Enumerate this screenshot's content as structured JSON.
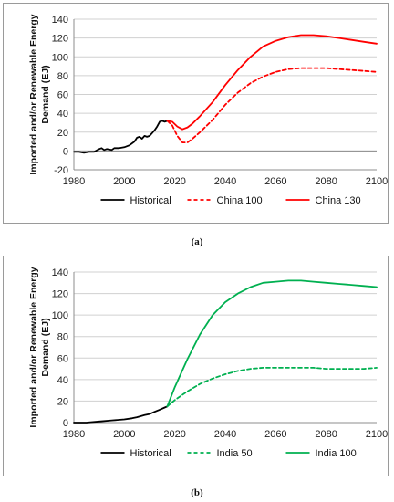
{
  "chart_data": [
    {
      "type": "line",
      "panel": "a",
      "ylabel": "Imported and/or Renewable Energy Demand (EJ)",
      "xlabel": "",
      "xlim": [
        1980,
        2100
      ],
      "ylim": [
        -20,
        140
      ],
      "xticks": [
        1980,
        2000,
        2020,
        2040,
        2060,
        2080,
        2100
      ],
      "yticks": [
        -20,
        0,
        20,
        40,
        60,
        80,
        100,
        120,
        140
      ],
      "grid": "horizontal",
      "legend": "bottom",
      "series": [
        {
          "name": "Historical",
          "color": "#000000",
          "dash": "solid",
          "x": [
            1980,
            1982,
            1984,
            1986,
            1988,
            1990,
            1991,
            1992,
            1993,
            1995,
            1996,
            1998,
            2000,
            2002,
            2004,
            2005,
            2006,
            2007,
            2008,
            2009,
            2010,
            2011,
            2012,
            2013,
            2014,
            2015,
            2016,
            2017
          ],
          "y": [
            -1,
            -1,
            -2,
            -1,
            -1,
            2,
            3,
            1,
            2,
            1,
            3,
            3,
            4,
            6,
            10,
            14,
            15,
            13,
            16,
            15,
            16,
            19,
            22,
            26,
            31,
            32,
            31,
            32
          ]
        },
        {
          "name": "China 100",
          "color": "#ff0000",
          "dash": "dashed",
          "x": [
            2017,
            2019,
            2021,
            2023,
            2025,
            2027,
            2030,
            2035,
            2040,
            2045,
            2050,
            2055,
            2060,
            2065,
            2070,
            2075,
            2080,
            2085,
            2090,
            2095,
            2100
          ],
          "y": [
            32,
            27,
            16,
            9,
            9,
            13,
            20,
            33,
            49,
            62,
            72,
            79,
            84,
            87,
            88,
            88,
            88,
            87,
            86,
            85,
            84
          ]
        },
        {
          "name": "China 130",
          "color": "#ff0000",
          "dash": "solid",
          "x": [
            2017,
            2019,
            2021,
            2023,
            2025,
            2027,
            2030,
            2035,
            2040,
            2045,
            2050,
            2055,
            2060,
            2065,
            2070,
            2075,
            2080,
            2085,
            2090,
            2095,
            2100
          ],
          "y": [
            32,
            31,
            26,
            23,
            25,
            29,
            37,
            52,
            70,
            86,
            100,
            111,
            117,
            121,
            123,
            123,
            122,
            120,
            118,
            116,
            114
          ]
        }
      ]
    },
    {
      "type": "line",
      "panel": "b",
      "ylabel": "Imported and/or Renewable Energy Demand (EJ)",
      "xlabel": "",
      "xlim": [
        1980,
        2100
      ],
      "ylim": [
        0,
        140
      ],
      "xticks": [
        1980,
        2000,
        2020,
        2040,
        2060,
        2080,
        2100
      ],
      "yticks": [
        0,
        20,
        40,
        60,
        80,
        100,
        120,
        140
      ],
      "grid": "horizontal",
      "legend": "bottom",
      "series": [
        {
          "name": "Historical",
          "color": "#000000",
          "dash": "solid",
          "x": [
            1980,
            1985,
            1990,
            1995,
            2000,
            2003,
            2005,
            2008,
            2010,
            2012,
            2014,
            2016,
            2017
          ],
          "y": [
            0,
            0,
            1,
            2,
            3,
            4,
            5,
            7,
            8,
            10,
            12,
            14,
            15
          ]
        },
        {
          "name": "India 50",
          "color": "#00b050",
          "dash": "dashed",
          "x": [
            2017,
            2020,
            2025,
            2030,
            2035,
            2040,
            2045,
            2050,
            2055,
            2060,
            2065,
            2070,
            2075,
            2080,
            2085,
            2090,
            2095,
            2100
          ],
          "y": [
            15,
            21,
            29,
            36,
            41,
            45,
            48,
            50,
            51,
            51,
            51,
            51,
            51,
            50,
            50,
            50,
            50,
            51
          ]
        },
        {
          "name": "India 100",
          "color": "#00b050",
          "dash": "solid",
          "x": [
            2017,
            2020,
            2025,
            2030,
            2035,
            2040,
            2045,
            2050,
            2055,
            2060,
            2065,
            2070,
            2075,
            2080,
            2085,
            2090,
            2095,
            2100
          ],
          "y": [
            15,
            33,
            59,
            82,
            100,
            112,
            120,
            126,
            130,
            131,
            132,
            132,
            131,
            130,
            129,
            128,
            127,
            126
          ]
        }
      ]
    }
  ],
  "captions": {
    "a": "(a)",
    "b": "(b)"
  }
}
